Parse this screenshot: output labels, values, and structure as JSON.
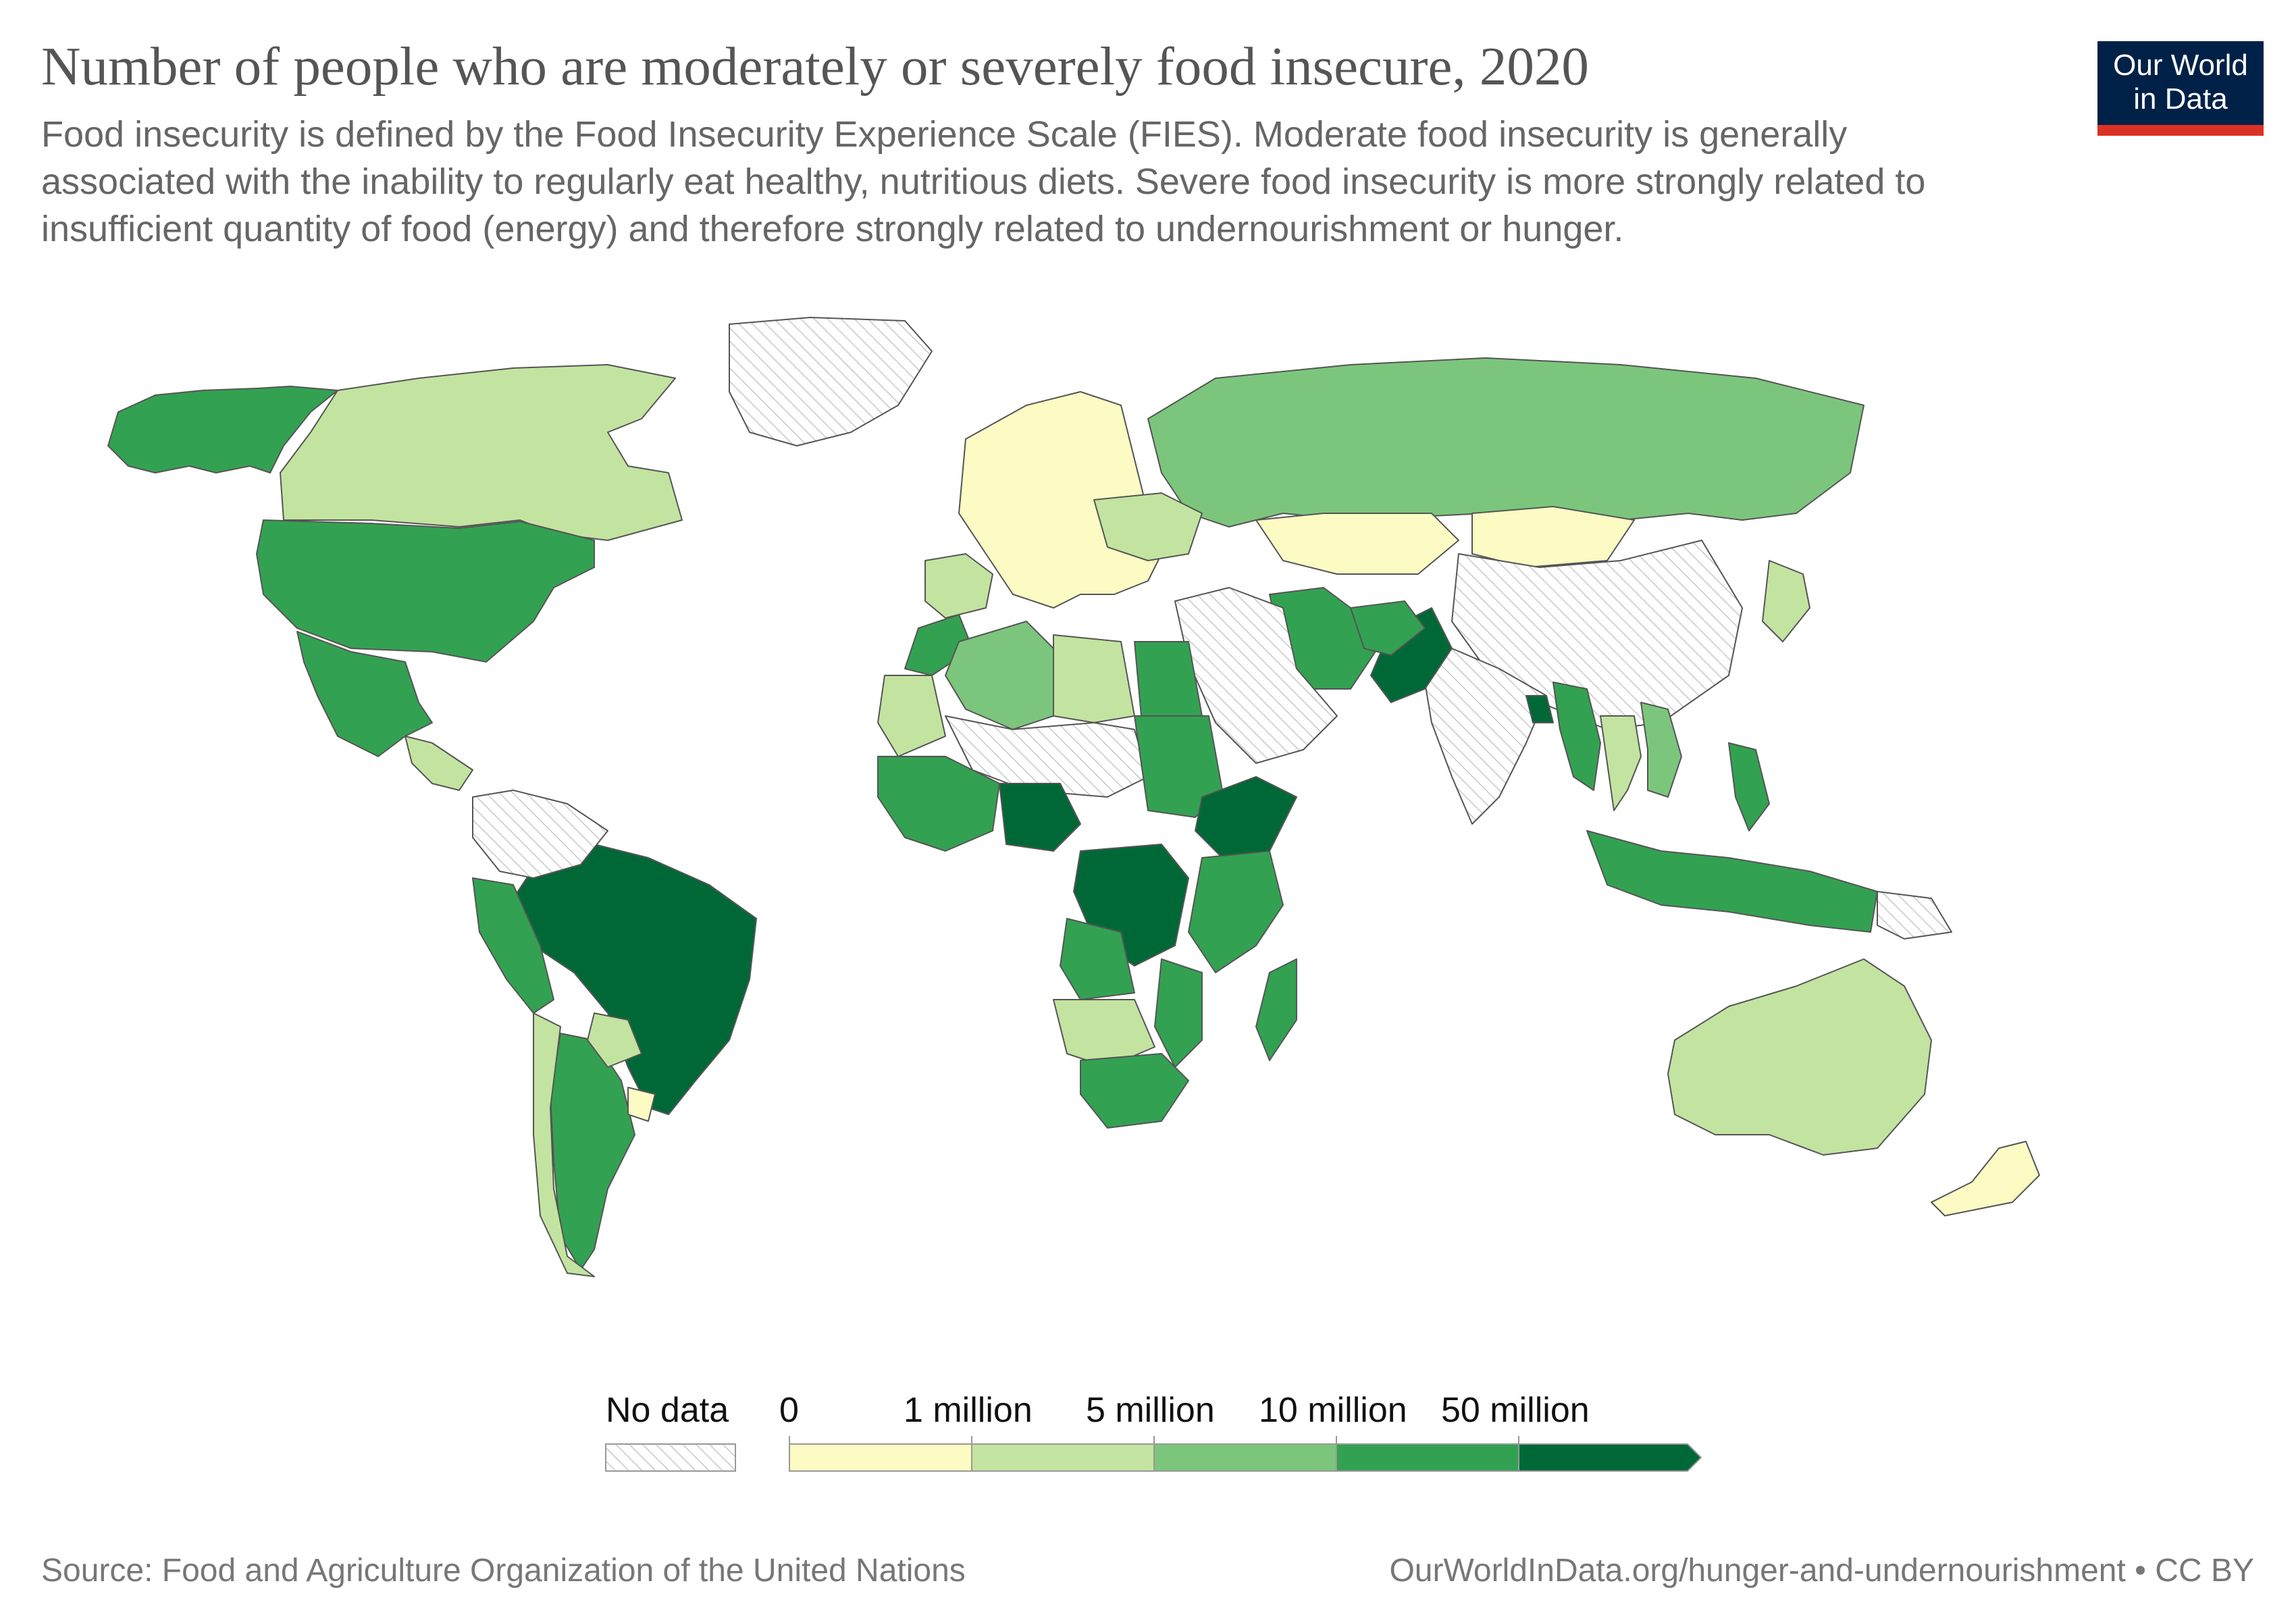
{
  "title": "Number of people who are moderately or severely food insecure, 2020",
  "subtitle": {
    "line1": "Food insecurity is defined by the Food Insecurity Experience Scale (FIES). Moderate food insecurity is generally",
    "line2": "associated with the inability to regularly eat healthy, nutritious diets. Severe food insecurity is more strongly related to",
    "line3": "insufficient quantity of food (energy) and therefore strongly related to undernourishment or hunger."
  },
  "logo": {
    "line1": "Our World",
    "line2": "in Data"
  },
  "colors": {
    "no_data_stroke": "#c8c8c8",
    "bin0": "#fbfbc3",
    "bin1": "#c3e4a0",
    "bin2": "#7bc67c",
    "bin3": "#33a152",
    "bin4": "#006837",
    "border": "#555555",
    "brand_navy": "#002147",
    "brand_red": "#dc3225"
  },
  "legend": {
    "no_data_label": "No data",
    "bins": [
      {
        "label": "0",
        "color": "#fbfbc3"
      },
      {
        "label": "1 million",
        "color": "#c3e4a0"
      },
      {
        "label": "5 million",
        "color": "#7bc67c"
      },
      {
        "label": "10 million",
        "color": "#33a152"
      },
      {
        "label": "50 million",
        "color": "#006837"
      }
    ]
  },
  "regions": [
    {
      "name": "Alaska (US)",
      "bin": 3
    },
    {
      "name": "Canada",
      "bin": 1
    },
    {
      "name": "United States",
      "bin": 3
    },
    {
      "name": "Mexico",
      "bin": 3
    },
    {
      "name": "Central America",
      "bin": 1
    },
    {
      "name": "Brazil",
      "bin": 4
    },
    {
      "name": "Peru",
      "bin": 3
    },
    {
      "name": "Argentina",
      "bin": 3
    },
    {
      "name": "Chile",
      "bin": 1
    },
    {
      "name": "Paraguay",
      "bin": 1
    },
    {
      "name": "Uruguay",
      "bin": 0
    },
    {
      "name": "Venezuela / Colombia / Bolivia",
      "bin": -1
    },
    {
      "name": "Greenland",
      "bin": -1
    },
    {
      "name": "Russia",
      "bin": 2
    },
    {
      "name": "Kazakhstan",
      "bin": 0
    },
    {
      "name": "Mongolia",
      "bin": 0
    },
    {
      "name": "China",
      "bin": -1
    },
    {
      "name": "India",
      "bin": -1
    },
    {
      "name": "Pakistan",
      "bin": 4
    },
    {
      "name": "Bangladesh",
      "bin": 4
    },
    {
      "name": "Iran",
      "bin": 3
    },
    {
      "name": "Afghanistan",
      "bin": 3
    },
    {
      "name": "Myanmar",
      "bin": 3
    },
    {
      "name": "Thailand",
      "bin": 1
    },
    {
      "name": "Vietnam",
      "bin": 2
    },
    {
      "name": "Philippines",
      "bin": 3
    },
    {
      "name": "Indonesia",
      "bin": 3
    },
    {
      "name": "Japan",
      "bin": 1
    },
    {
      "name": "Europe",
      "bin": 0
    },
    {
      "name": "Spain",
      "bin": 1
    },
    {
      "name": "Ukraine / Eastern Europe",
      "bin": 1
    },
    {
      "name": "Saudi Arabia / Middle East",
      "bin": -1
    },
    {
      "name": "Morocco",
      "bin": 3
    },
    {
      "name": "Algeria",
      "bin": 2
    },
    {
      "name": "Libya",
      "bin": 1
    },
    {
      "name": "Egypt",
      "bin": 3
    },
    {
      "name": "Sahel",
      "bin": -1
    },
    {
      "name": "Mauritania",
      "bin": 1
    },
    {
      "name": "Sudan",
      "bin": 3
    },
    {
      "name": "Ethiopia",
      "bin": 4
    },
    {
      "name": "Nigeria",
      "bin": 4
    },
    {
      "name": "DR Congo",
      "bin": 4
    },
    {
      "name": "West Africa",
      "bin": 3
    },
    {
      "name": "East Africa",
      "bin": 3
    },
    {
      "name": "Angola",
      "bin": 3
    },
    {
      "name": "Namibia / Botswana",
      "bin": 1
    },
    {
      "name": "South Africa",
      "bin": 3
    },
    {
      "name": "Mozambique",
      "bin": 3
    },
    {
      "name": "Madagascar",
      "bin": 3
    },
    {
      "name": "Australia",
      "bin": 1
    },
    {
      "name": "New Zealand",
      "bin": 0
    },
    {
      "name": "Papua New Guinea",
      "bin": -1
    }
  ],
  "footer": {
    "source": "Source: Food and Agriculture Organization of the United Nations",
    "url": "OurWorldInData.org/hunger-and-undernourishment • CC BY"
  }
}
